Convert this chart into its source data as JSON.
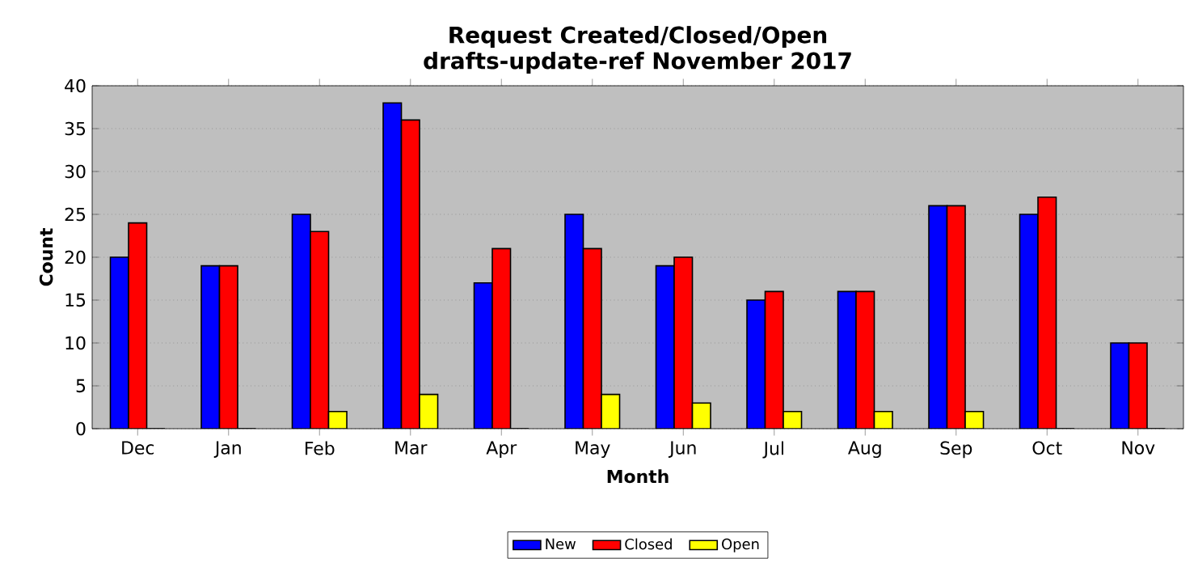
{
  "chart_data": {
    "type": "bar",
    "title": "Request Created/Closed/Open",
    "subtitle": "drafts-update-ref November 2017",
    "xlabel": "Month",
    "ylabel": "Count",
    "categories": [
      "Dec",
      "Jan",
      "Feb",
      "Mar",
      "Apr",
      "May",
      "Jun",
      "Jul",
      "Aug",
      "Sep",
      "Oct",
      "Nov"
    ],
    "series": [
      {
        "name": "New",
        "color": "#0000ff",
        "values": [
          20,
          19,
          25,
          38,
          17,
          25,
          19,
          15,
          16,
          26,
          25,
          10
        ]
      },
      {
        "name": "Closed",
        "color": "#ff0000",
        "values": [
          24,
          19,
          23,
          36,
          21,
          21,
          20,
          16,
          16,
          26,
          27,
          10
        ]
      },
      {
        "name": "Open",
        "color": "#ffff00",
        "values": [
          0,
          0,
          2,
          4,
          0,
          4,
          3,
          2,
          2,
          2,
          0,
          0
        ]
      }
    ],
    "ylim": [
      0,
      40
    ],
    "yticks": [
      0,
      5,
      10,
      15,
      20,
      25,
      30,
      35,
      40
    ],
    "grid": "y",
    "legend": "bottom"
  }
}
